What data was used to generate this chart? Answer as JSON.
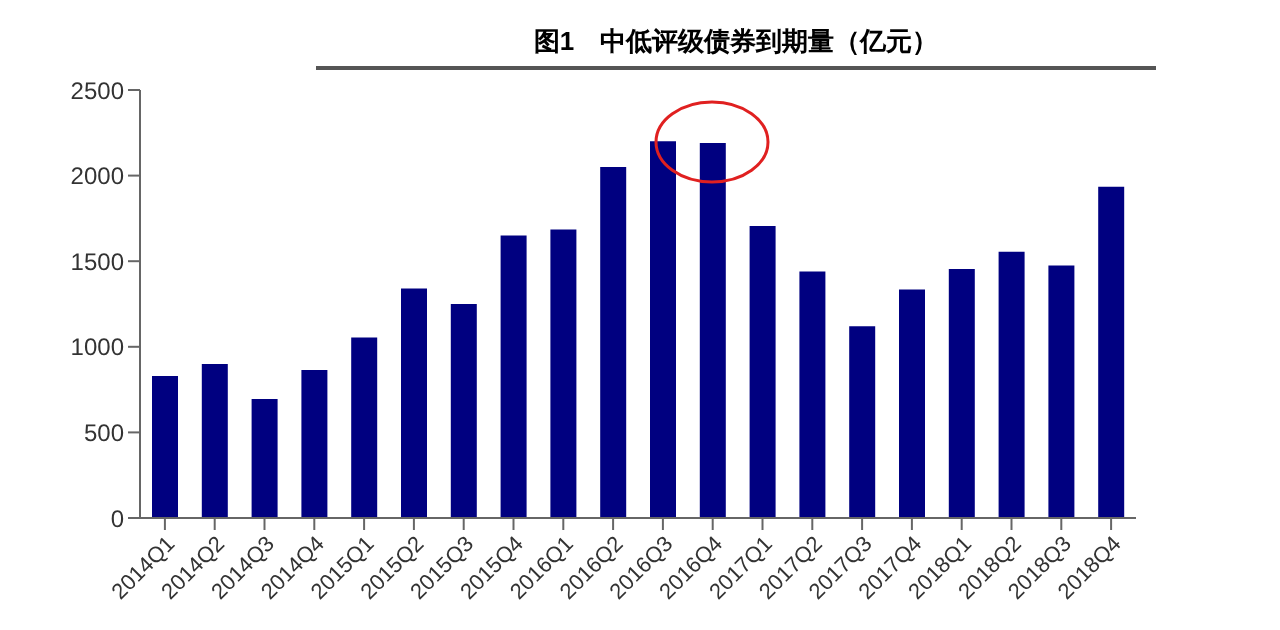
{
  "chart_data": {
    "type": "bar",
    "title": "图1　中低评级债券到期量（亿元）",
    "categories": [
      "2014Q1",
      "2014Q2",
      "2014Q3",
      "2014Q4",
      "2015Q1",
      "2015Q2",
      "2015Q3",
      "2015Q4",
      "2016Q1",
      "2016Q2",
      "2016Q3",
      "2016Q4",
      "2017Q1",
      "2017Q2",
      "2017Q3",
      "2017Q4",
      "2018Q1",
      "2018Q2",
      "2018Q3",
      "2018Q4"
    ],
    "values": [
      830,
      900,
      695,
      865,
      1055,
      1340,
      1250,
      1650,
      1685,
      2050,
      2200,
      2190,
      1705,
      1440,
      1120,
      1335,
      1455,
      1555,
      1475,
      1935
    ],
    "color": "#000080",
    "ylim": [
      0,
      2500
    ],
    "yticks": [
      0,
      500,
      1000,
      1500,
      2000,
      2500
    ],
    "grid": false,
    "legend": false
  }
}
